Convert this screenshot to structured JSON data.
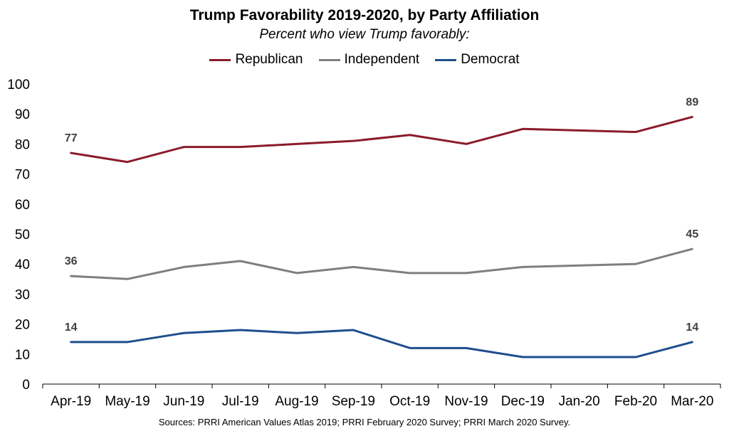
{
  "chart_data": {
    "type": "line",
    "title": "Trump Favorability 2019-2020, by Party Affiliation",
    "subtitle": "Percent who view Trump favorably:",
    "source": "Sources: PRRI American Values Atlas 2019; PRRI February 2020 Survey; PRRI March 2020 Survey.",
    "categories": [
      "Apr-19",
      "May-19",
      "Jun-19",
      "Jul-19",
      "Aug-19",
      "Sep-19",
      "Oct-19",
      "Nov-19",
      "Dec-19",
      "Jan-20",
      "Feb-20",
      "Mar-20"
    ],
    "yticks": [
      "0",
      "10",
      "20",
      "30",
      "40",
      "50",
      "60",
      "70",
      "80",
      "90",
      "100"
    ],
    "ylim": [
      0,
      100
    ],
    "grid": false,
    "legend_position": "top-center",
    "series": [
      {
        "name": "Republican",
        "color": "#8B1A2B",
        "values": [
          77,
          74,
          79,
          79,
          80,
          81,
          83,
          80,
          85,
          null,
          84,
          89
        ]
      },
      {
        "name": "Independent",
        "color": "#7F7F7F",
        "values": [
          36,
          35,
          39,
          41,
          37,
          39,
          37,
          37,
          39,
          null,
          40,
          45
        ]
      },
      {
        "name": "Democrat",
        "color": "#1F4E8C",
        "values": [
          14,
          14,
          17,
          18,
          17,
          18,
          12,
          12,
          9,
          null,
          9,
          14
        ]
      }
    ],
    "data_labels": [
      {
        "series": 0,
        "index": 0,
        "text": "77"
      },
      {
        "series": 0,
        "index": 11,
        "text": "89"
      },
      {
        "series": 1,
        "index": 0,
        "text": "36"
      },
      {
        "series": 1,
        "index": 11,
        "text": "45"
      },
      {
        "series": 2,
        "index": 0,
        "text": "14"
      },
      {
        "series": 2,
        "index": 11,
        "text": "14"
      }
    ]
  }
}
